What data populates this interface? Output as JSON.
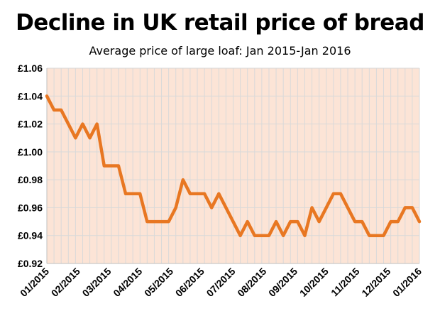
{
  "chart_data": {
    "type": "line",
    "title": "Decline in UK retail price of bread",
    "subtitle": "Average price of large loaf: Jan 2015-Jan 2016",
    "xlabel": "",
    "ylabel": "",
    "ylim": [
      0.92,
      1.06
    ],
    "ytick_values": [
      0.92,
      0.94,
      0.96,
      0.98,
      1.0,
      1.02,
      1.04,
      1.06
    ],
    "ytick_labels": [
      "£0.92",
      "£0.94",
      "£0.96",
      "£0.98",
      "£1.00",
      "£1.02",
      "£1.04",
      "£1.06"
    ],
    "xtick_labels": [
      "01/2015",
      "02/2015",
      "03/2015",
      "04/2015",
      "05/2015",
      "06/2015",
      "07/2015",
      "08/2015",
      "09/2015",
      "10/2015",
      "11/2015",
      "12/2015",
      "01/2016"
    ],
    "grid": true,
    "colors": {
      "line": "#E87722",
      "plot_bg": "#FCE4D6",
      "grid": "#D9D9D9",
      "axis": "#BFBFBF"
    },
    "series": [
      {
        "values": [
          1.04,
          1.03,
          1.03,
          1.02,
          1.01,
          1.02,
          1.01,
          1.02,
          0.99,
          0.99,
          0.99,
          0.97,
          0.97,
          0.97,
          0.95,
          0.95,
          0.95,
          0.95,
          0.96,
          0.98,
          0.97,
          0.97,
          0.97,
          0.96,
          0.97,
          0.96,
          0.95,
          0.94,
          0.95,
          0.94,
          0.94,
          0.94,
          0.95,
          0.94,
          0.95,
          0.95,
          0.94,
          0.96,
          0.95,
          0.96,
          0.97,
          0.97,
          0.96,
          0.95,
          0.95,
          0.94,
          0.94,
          0.94,
          0.95,
          0.95,
          0.96,
          0.96,
          0.95
        ]
      }
    ]
  }
}
